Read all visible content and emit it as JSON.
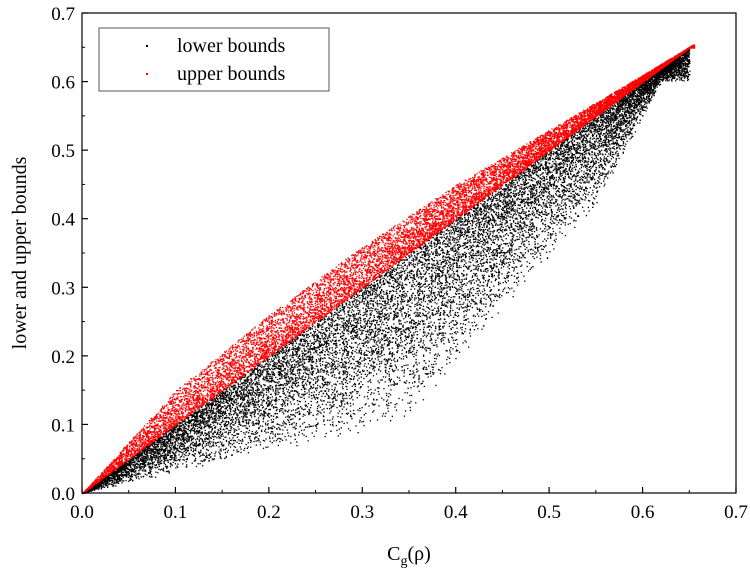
{
  "chart_data": {
    "type": "scatter",
    "xlabel": "C",
    "xlabel_sub": "g",
    "xlabel_suffix": "(ρ)",
    "ylabel": "lower and upper bounds",
    "xlim": [
      0.0,
      0.7
    ],
    "ylim": [
      0.0,
      0.7
    ],
    "x_ticks": [
      "0.0",
      "0.1",
      "0.2",
      "0.3",
      "0.4",
      "0.5",
      "0.6",
      "0.7"
    ],
    "y_ticks": [
      "0.0",
      "0.1",
      "0.2",
      "0.3",
      "0.4",
      "0.5",
      "0.6",
      "0.7"
    ],
    "grid": false,
    "legend_position": "top-left",
    "series": [
      {
        "name": "lower bounds",
        "color": "#000000",
        "description_envelope": {
          "min_y_at_x": [
            [
              0.0,
              0.0
            ],
            [
              0.1,
              0.03
            ],
            [
              0.2,
              0.06
            ],
            [
              0.3,
              0.09
            ],
            [
              0.35,
              0.11
            ],
            [
              0.45,
              0.27
            ],
            [
              0.55,
              0.42
            ],
            [
              0.62,
              0.6
            ]
          ],
          "max_y_at_x": [
            [
              0.0,
              0.0
            ],
            [
              0.1,
              0.1
            ],
            [
              0.2,
              0.2
            ],
            [
              0.3,
              0.3
            ],
            [
              0.4,
              0.4
            ],
            [
              0.5,
              0.5
            ],
            [
              0.6,
              0.6
            ],
            [
              0.65,
              0.65
            ]
          ]
        }
      },
      {
        "name": "upper bounds",
        "color": "#ff0000",
        "description_envelope": {
          "min_y_at_x": [
            [
              0.0,
              0.0
            ],
            [
              0.1,
              0.1
            ],
            [
              0.2,
              0.2
            ],
            [
              0.3,
              0.3
            ],
            [
              0.4,
              0.4
            ],
            [
              0.5,
              0.5
            ],
            [
              0.6,
              0.6
            ],
            [
              0.65,
              0.65
            ]
          ],
          "max_y_at_x": [
            [
              0.0,
              0.0
            ],
            [
              0.1,
              0.15
            ],
            [
              0.2,
              0.26
            ],
            [
              0.3,
              0.36
            ],
            [
              0.4,
              0.45
            ],
            [
              0.5,
              0.53
            ],
            [
              0.6,
              0.61
            ],
            [
              0.655,
              0.655
            ]
          ]
        }
      }
    ]
  }
}
